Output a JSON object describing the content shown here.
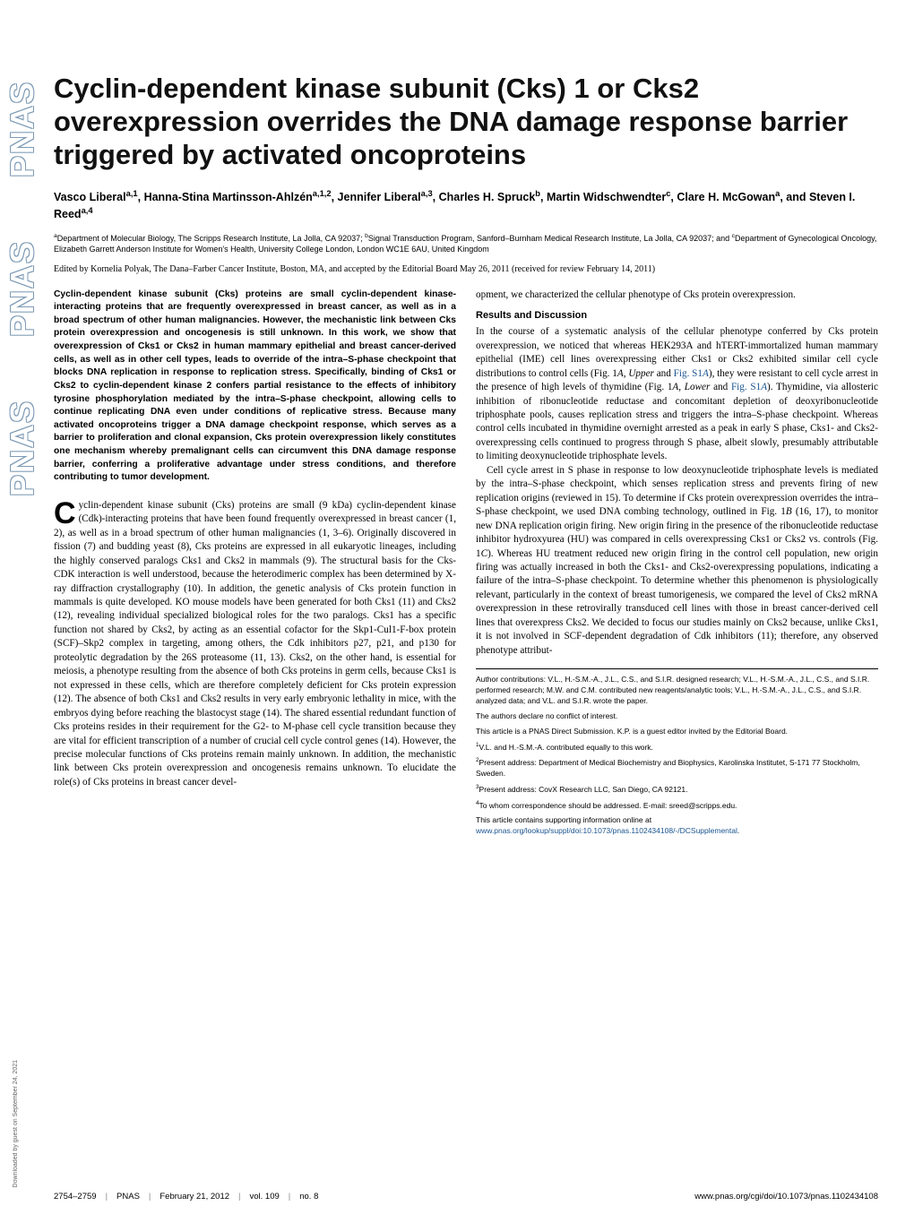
{
  "sidebar": {
    "logo_text": "PNAS",
    "download_note": "Downloaded by guest on September 24, 2021"
  },
  "title": "Cyclin-dependent kinase subunit (Cks) 1 or Cks2 overexpression overrides the DNA damage response barrier triggered by activated oncoproteins",
  "authors_html": "Vasco Liberal<sup>a,1</sup>, Hanna-Stina Martinsson-Ahlzén<sup>a,1,2</sup>, Jennifer Liberal<sup>a,3</sup>, Charles H. Spruck<sup>b</sup>, Martin Widschwendter<sup>c</sup>, Clare H. McGowan<sup>a</sup>, and Steven I. Reed<sup>a,4</sup>",
  "affiliations_html": "<sup>a</sup>Department of Molecular Biology, The Scripps Research Institute, La Jolla, CA 92037; <sup>b</sup>Signal Transduction Program, Sanford–Burnham Medical Research Institute, La Jolla, CA 92037; and <sup>c</sup>Department of Gynecological Oncology, Elizabeth Garrett Anderson Institute for Women's Health, University College London, London WC1E 6AU, United Kingdom",
  "edited": "Edited by Kornelia Polyak, The Dana–Farber Cancer Institute, Boston, MA, and accepted by the Editorial Board May 26, 2011 (received for review February 14, 2011)",
  "abstract": "Cyclin-dependent kinase subunit (Cks) proteins are small cyclin-dependent kinase-interacting proteins that are frequently overexpressed in breast cancer, as well as in a broad spectrum of other human malignancies. However, the mechanistic link between Cks protein overexpression and oncogenesis is still unknown. In this work, we show that overexpression of Cks1 or Cks2 in human mammary epithelial and breast cancer-derived cells, as well as in other cell types, leads to override of the intra–S-phase checkpoint that blocks DNA replication in response to replication stress. Specifically, binding of Cks1 or Cks2 to cyclin-dependent kinase 2 confers partial resistance to the effects of inhibitory tyrosine phosphorylation mediated by the intra–S-phase checkpoint, allowing cells to continue replicating DNA even under conditions of replicative stress. Because many activated oncoproteins trigger a DNA damage checkpoint response, which serves as a barrier to proliferation and clonal expansion, Cks protein overexpression likely constitutes one mechanism whereby premalignant cells can circumvent this DNA damage response barrier, conferring a proliferative advantage under stress conditions, and therefore contributing to tumor development.",
  "body_left": "yclin-dependent kinase subunit (Cks) proteins are small (9 kDa) cyclin-dependent kinase (Cdk)-interacting proteins that have been found frequently overexpressed in breast cancer (1, 2), as well as in a broad spectrum of other human malignancies (1, 3–6). Originally discovered in fission (7) and budding yeast (8), Cks proteins are expressed in all eukaryotic lineages, including the highly conserved paralogs Cks1 and Cks2 in mammals (9). The structural basis for the Cks-CDK interaction is well understood, because the heterodimeric complex has been determined by X-ray diffraction crystallography (10). In addition, the genetic analysis of Cks protein function in mammals is quite developed. KO mouse models have been generated for both Cks1 (11) and Cks2 (12), revealing individual specialized biological roles for the two paralogs. Cks1 has a specific function not shared by Cks2, by acting as an essential cofactor for the Skp1-Cul1-F-box protein (SCF)–Skp2 complex in targeting, among others, the Cdk inhibitors p27, p21, and p130 for proteolytic degradation by the 26S proteasome (11, 13). Cks2, on the other hand, is essential for meiosis, a phenotype resulting from the absence of both Cks proteins in germ cells, because Cks1 is not expressed in these cells, which are therefore completely deficient for Cks protein expression (12). The absence of both Cks1 and Cks2 results in very early embryonic lethality in mice, with the embryos dying before reaching the blastocyst stage (14). The shared essential redundant function of Cks proteins resides in their requirement for the G2- to M-phase cell cycle transition because they are vital for efficient transcription of a number of crucial cell cycle control genes (14). However, the precise molecular functions of Cks proteins remain mainly unknown. In addition, the mechanistic link between Cks protein overexpression and oncogenesis remains unknown. To elucidate the role(s) of Cks proteins in breast cancer devel-",
  "body_right_1": "opment, we characterized the cellular phenotype of Cks protein overexpression.",
  "section_head": "Results and Discussion",
  "body_right_2_html": "In the course of a systematic analysis of the cellular phenotype conferred by Cks protein overexpression, we noticed that whereas HEK293A and hTERT-immortalized human mammary epithelial (IME) cell lines overexpressing either Cks1 or Cks2 exhibited similar cell cycle distributions to control cells (Fig. 1<i>A</i>, <i>Upper</i> and <span class='link'>Fig. S1<i>A</i></span>), they were resistant to cell cycle arrest in the presence of high levels of thymidine (Fig. 1<i>A</i>, <i>Lower</i> and <span class='link'>Fig. S1<i>A</i></span>). Thymidine, via allosteric inhibition of ribonucleotide reductase and concomitant depletion of deoxyribonucleotide triphosphate pools, causes replication stress and triggers the intra–S-phase checkpoint. Whereas control cells incubated in thymidine overnight arrested as a peak in early S phase, Cks1- and Cks2-overexpressing cells continued to progress through S phase, albeit slowly, presumably attributable to limiting deoxynucleotide triphosphate levels.",
  "body_right_3_html": "Cell cycle arrest in S phase in response to low deoxynucleotide triphosphate levels is mediated by the intra–S-phase checkpoint, which senses replication stress and prevents firing of new replication origins (reviewed in 15). To determine if Cks protein overexpression overrides the intra–S-phase checkpoint, we used DNA combing technology, outlined in Fig. 1<i>B</i> (16, 17), to monitor new DNA replication origin firing. New origin firing in the presence of the ribonucleotide reductase inhibitor hydroxyurea (HU) was compared in cells overexpressing Cks1 or Cks2 vs. controls (Fig. 1<i>C</i>). Whereas HU treatment reduced new origin firing in the control cell population, new origin firing was actually increased in both the Cks1- and Cks2-overexpressing populations, indicating a failure of the intra–S-phase checkpoint. To determine whether this phenomenon is physiologically relevant, particularly in the context of breast tumorigenesis, we compared the level of Cks2 mRNA overexpression in these retrovirally transduced cell lines with those in breast cancer-derived cell lines that overexpress Cks2. We decided to focus our studies mainly on Cks2 because, unlike Cks1, it is not involved in SCF-dependent degradation of Cdk inhibitors (11); therefore, any observed phenotype attribut-",
  "footnotes": {
    "contrib": "Author contributions: V.L., H.-S.M.-A., J.L., C.S., and S.I.R. designed research; V.L., H.-S.M.-A., J.L., C.S., and S.I.R. performed research; M.W. and C.M. contributed new reagents/analytic tools; V.L., H.-S.M.-A., J.L., C.S., and S.I.R. analyzed data; and V.L. and S.I.R. wrote the paper.",
    "conflict": "The authors declare no conflict of interest.",
    "submission": "This article is a PNAS Direct Submission. K.P. is a guest editor invited by the Editorial Board.",
    "n1": "V.L. and H.-S.M.-A. contributed equally to this work.",
    "n2": "Present address: Department of Medical Biochemistry and Biophysics, Karolinska Institutet, S-171 77 Stockholm, Sweden.",
    "n3": "Present address: CovX Research LLC, San Diego, CA 92121.",
    "n4": "To whom correspondence should be addressed. E-mail: sreed@scripps.edu.",
    "si_prefix": "This article contains supporting information online at ",
    "si_link": "www.pnas.org/lookup/suppl/doi:10.1073/pnas.1102434108/-/DCSupplemental",
    "si_suffix": "."
  },
  "footer": {
    "pages": "2754–2759",
    "journal": "PNAS",
    "date": "February 21, 2012",
    "vol": "vol. 109",
    "no": "no. 8",
    "url": "www.pnas.org/cgi/doi/10.1073/pnas.1102434108"
  }
}
